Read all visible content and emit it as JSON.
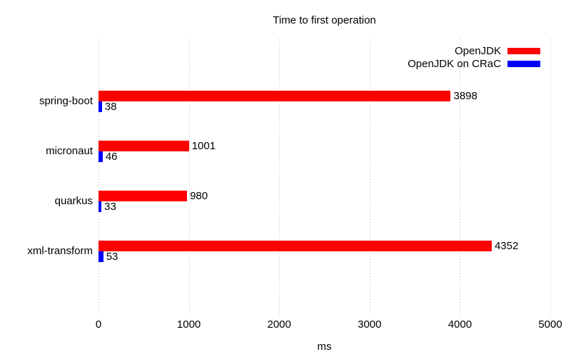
{
  "chart_data": {
    "type": "bar",
    "orientation": "horizontal",
    "title": "Time to first operation",
    "categories": [
      "spring-boot",
      "micronaut",
      "quarkus",
      "xml-transform"
    ],
    "series": [
      {
        "name": "OpenJDK",
        "color": "#ff0000",
        "values": [
          3898,
          1001,
          980,
          4352
        ]
      },
      {
        "name": "OpenJDK on CRaC",
        "color": "#0000ff",
        "values": [
          38,
          46,
          33,
          53
        ]
      }
    ],
    "xlabel": "ms",
    "xlim": [
      0,
      5000
    ],
    "xticks": [
      0,
      1000,
      2000,
      3000,
      4000,
      5000
    ],
    "grid": "vertical-dotted",
    "grid_color": "#b9b9b9",
    "legend_position": "top-right",
    "text_color": "#000000",
    "background_color": "#ffffff"
  }
}
